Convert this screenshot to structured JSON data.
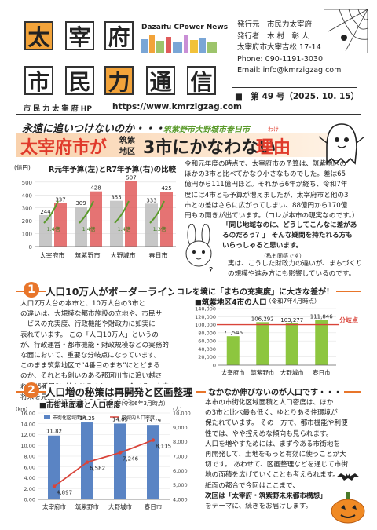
{
  "masthead": {
    "title_row1": [
      "太",
      "宰",
      "府"
    ],
    "title_row2": [
      "市",
      "民",
      "力",
      "通",
      "信"
    ],
    "brand": "Dazaifu CPower News",
    "hp_label": "市 民 力 太 宰 府 HP",
    "url": "https://www.kmrzigzag.com"
  },
  "publisher": {
    "lines": [
      "発行元　市民力太宰府",
      "発行者　木 村　彰 人",
      "太宰府市大宰吉松 17-14",
      "Phone: 090-1191-3030",
      "Email: info@kmrzigzag.com"
    ],
    "issue_label": "■　第 49 号（2025. 10. 15）"
  },
  "headline": {
    "kicker": "永遠に追いつけないのか・・・",
    "kicker_cities": "筑紫野市大野城市春日市",
    "main_a": "太宰府市が",
    "main_b_top": "筑紫",
    "main_b_bottom": "地区",
    "main_c": "3市にかなわない",
    "main_d": "理由",
    "furigana": "わけ"
  },
  "budget_chart": {
    "title": "R元年予算(左)とR7年予算(右)の比較",
    "unit": "(億円)",
    "chart_data": {
      "type": "bar",
      "categories": [
        "太宰府市",
        "筑紫野市",
        "大野城市",
        "春日市"
      ],
      "series": [
        {
          "name": "R元年予算",
          "values": [
            244,
            309,
            355,
            333
          ]
        },
        {
          "name": "R7年予算",
          "values": [
            337,
            428,
            507,
            425
          ]
        }
      ],
      "growth_labels": [
        "1.4倍",
        "1.4倍",
        "1.4倍",
        "1.3倍"
      ],
      "ytick_labels": [
        "500",
        "400",
        "300",
        "200",
        "100",
        "0"
      ],
      "ylim": [
        0,
        560
      ]
    }
  },
  "intro": {
    "lines": [
      "令和元年度の時点で、太宰府市の予算は、筑紫地区の",
      "ほかの3市と比べてかなり小さなものでした。差は65",
      "億円から111億円ほど。それから6年が経ち、令和7年",
      "度には4市とも予算が増えましたが、太宰府市と他の3",
      "市との差はさらに広がってしまい、88億円から170億",
      "円もの開きが出ています。（コレが本市の現実なのです。）"
    ],
    "quote_lines": [
      "「同じ地域なのに、どうしてこんなに差があ",
      "るのだろう？」 そんな疑問を持たれる方も",
      "いらっしゃると思います。"
    ],
    "quote_note": "（私も同感です）",
    "closing_lines": [
      "実は、こうした財政力の違いが、まちづくり",
      "の規模や進み方にも影響しているのです。"
    ]
  },
  "section1": {
    "number": "1",
    "title": "人口10万人がボーダーライン",
    "subtitle": "コレを境に「まちの充実度」に大きな差が！",
    "paragraph": [
      "人口7万人台の本市と、10万人台の3市と",
      "の違いは、大規模な都市施設の立地や、市民サ",
      "ービスの充実度、行政機能や財政力に如実に",
      "表れています。 この「人口10万人」というの",
      "が、行政運営・都市機能・財政規模などの実務的",
      "な面において、重要な分岐点になっています。",
      "このまま筑紫地区で“4番目のまち”にとどまる",
      "のか、それとも剝いのある那珂川市に追い越さ",
      "れ、“5番目”に甘んじるのか・・・ 今こそ、未来の",
      "将来を見据えた思案のしどころです。"
    ],
    "chart_title": "■筑紫地区4市の人口",
    "chart_note": "（令和7年4月時点）",
    "branch_label": "分岐点",
    "chart_data": {
      "type": "bar",
      "unit": "(人)",
      "categories": [
        "太宰府市",
        "筑紫野市",
        "大野城市",
        "春日市"
      ],
      "values": [
        71546,
        106292,
        103277,
        111846
      ],
      "value_labels": [
        "71,546",
        "106,292",
        "103,277",
        "111,846"
      ],
      "ytick_labels": [
        "140,000",
        "120,000",
        "100,000",
        "80,000",
        "60,000",
        "40,000",
        "20,000",
        "0"
      ],
      "ylim": [
        0,
        140000
      ],
      "threshold": 100000
    }
  },
  "section2": {
    "number": "2",
    "title": "人口増の秘策は再開発と区画整理",
    "subtitle": "なかなか伸びないのが人口です・・・",
    "chart_title": "■市街地面積と人口密度",
    "chart_note": "（令和6年3月時点）",
    "paragraph": [
      "本市の市街化区域面積と人口密度は、ほか",
      "の3市と比べ最も低く、ゆとりある住環境が",
      "保たれています。 その一方で、都市機能や利便",
      "性では、やや控えめな傾向も見られます。",
      "人口を増やすためには、まず今ある市街地を",
      "再開発して、土地をもっと有効に使うことが大",
      "切です。 あわせて、区画整理などを通じて市街",
      "地の面積を広げていくことも考えられます。",
      "紙面の都合で今回はここまで、",
      "次回は「太宰府・筑紫野未来都市構想」",
      "をテーマに、続きをお届けします。"
    ],
    "chart_data": {
      "type": "bar",
      "left_unit": "(km)",
      "right_unit": "(人)",
      "legend": [
        "市街化区域面積",
        "区域内人口密度"
      ],
      "categories": [
        "太宰府市",
        "筑紫野市",
        "大野城市",
        "春日市"
      ],
      "area_values": [
        11.82,
        14.25,
        14.05,
        13.79
      ],
      "area_labels": [
        "11.82",
        "14.25",
        "14.05",
        "13.79"
      ],
      "density_values": [
        4897,
        6582,
        7246,
        8115
      ],
      "density_labels": [
        "4,897",
        "6,582",
        "7,246",
        "8,115"
      ],
      "left_ticks": [
        "16.00",
        "14.00",
        "12.00",
        "10.00",
        "8.00",
        "6.00",
        "4.00",
        "2.00",
        "0.00"
      ],
      "right_ticks": [
        "10,000",
        "9,000",
        "8,000",
        "7,000",
        "6,000",
        "5,000",
        "4,000"
      ],
      "left_ylim": [
        0,
        16
      ],
      "right_ylim": [
        4000,
        10000
      ]
    }
  },
  "colors": {
    "accent": "#e8752a",
    "bar_green": "#8dc63f",
    "bar_red": "#e05b5b",
    "bar_gray": "#bdbdbd",
    "bar_blue": "#5a84c4",
    "line_red": "#d9443a",
    "title_orange": "#f2a33a"
  }
}
